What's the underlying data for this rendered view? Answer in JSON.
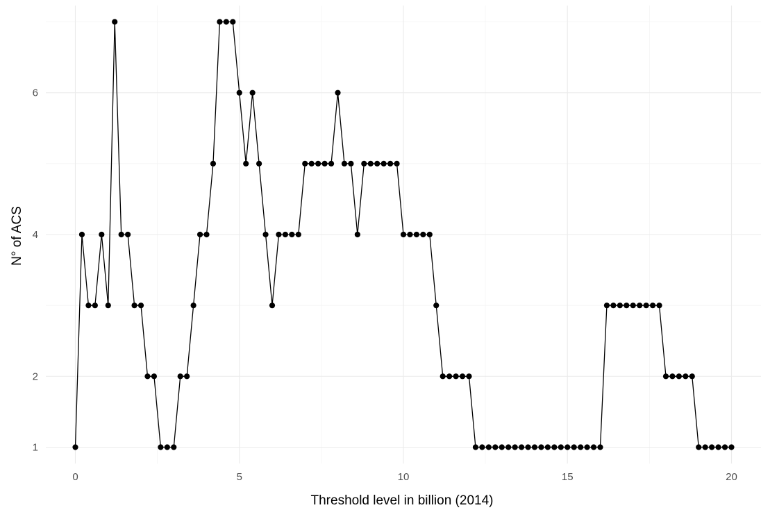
{
  "chart_data": {
    "type": "line",
    "title": "",
    "xlabel": "Threshold level in billion (2014)",
    "ylabel": "N° of ACS",
    "xlim": [
      -0.9,
      20.9
    ],
    "ylim": [
      0.77,
      7.23
    ],
    "x_ticks": [
      0,
      5,
      10,
      15,
      20
    ],
    "x_tick_labels": [
      "0",
      "5",
      "10",
      "15",
      "20"
    ],
    "y_ticks": [
      1,
      2,
      4,
      6
    ],
    "y_tick_labels": [
      "1",
      "2",
      "4",
      "6"
    ],
    "x_minor_grid": [
      2.5,
      7.5,
      12.5,
      17.5
    ],
    "y_major_grid": [
      1,
      2,
      4,
      6
    ],
    "y_minor_grid": [
      3,
      5,
      7
    ],
    "grid": true,
    "point_markers": true,
    "series": [
      {
        "x": [
          0,
          0.2,
          0.4,
          0.6,
          0.8,
          1,
          1.2,
          1.4,
          1.6,
          1.8,
          2,
          2.2,
          2.4,
          2.6,
          2.8,
          3,
          3.2,
          3.4,
          3.6,
          3.8,
          4,
          4.2,
          4.4,
          4.6,
          4.8,
          5,
          5.2,
          5.4,
          5.6,
          5.8,
          6,
          6.2,
          6.4,
          6.6,
          6.8,
          7,
          7.2,
          7.4,
          7.6,
          7.8,
          8,
          8.2,
          8.4,
          8.6,
          8.8,
          9,
          9.2,
          9.4,
          9.6,
          9.8,
          10,
          10.2,
          10.4,
          10.6,
          10.8,
          11,
          11.2,
          11.4,
          11.6,
          11.8,
          12,
          12.2,
          12.4,
          12.6,
          12.8,
          13,
          13.2,
          13.4,
          13.6,
          13.8,
          14,
          14.2,
          14.4,
          14.6,
          14.8,
          15,
          15.2,
          15.4,
          15.6,
          15.8,
          16,
          16.2,
          16.4,
          16.6,
          16.8,
          17,
          17.2,
          17.4,
          17.6,
          17.8,
          18,
          18.2,
          18.4,
          18.6,
          18.8,
          19,
          19.2,
          19.4,
          19.6,
          19.8,
          20
        ],
        "y": [
          1,
          4,
          3,
          3,
          4,
          3,
          7,
          4,
          4,
          3,
          3,
          2,
          2,
          1,
          1,
          1,
          2,
          2,
          3,
          4,
          4,
          5,
          7,
          7,
          7,
          6,
          5,
          6,
          5,
          4,
          3,
          4,
          4,
          4,
          4,
          5,
          5,
          5,
          5,
          5,
          6,
          5,
          5,
          4,
          5,
          5,
          5,
          5,
          5,
          5,
          4,
          4,
          4,
          4,
          4,
          3,
          2,
          2,
          2,
          2,
          2,
          1,
          1,
          1,
          1,
          1,
          1,
          1,
          1,
          1,
          1,
          1,
          1,
          1,
          1,
          1,
          1,
          1,
          1,
          1,
          1,
          3,
          3,
          3,
          3,
          3,
          3,
          3,
          3,
          3,
          2,
          2,
          2,
          2,
          2,
          1,
          1,
          1,
          1,
          1,
          1
        ]
      }
    ]
  }
}
